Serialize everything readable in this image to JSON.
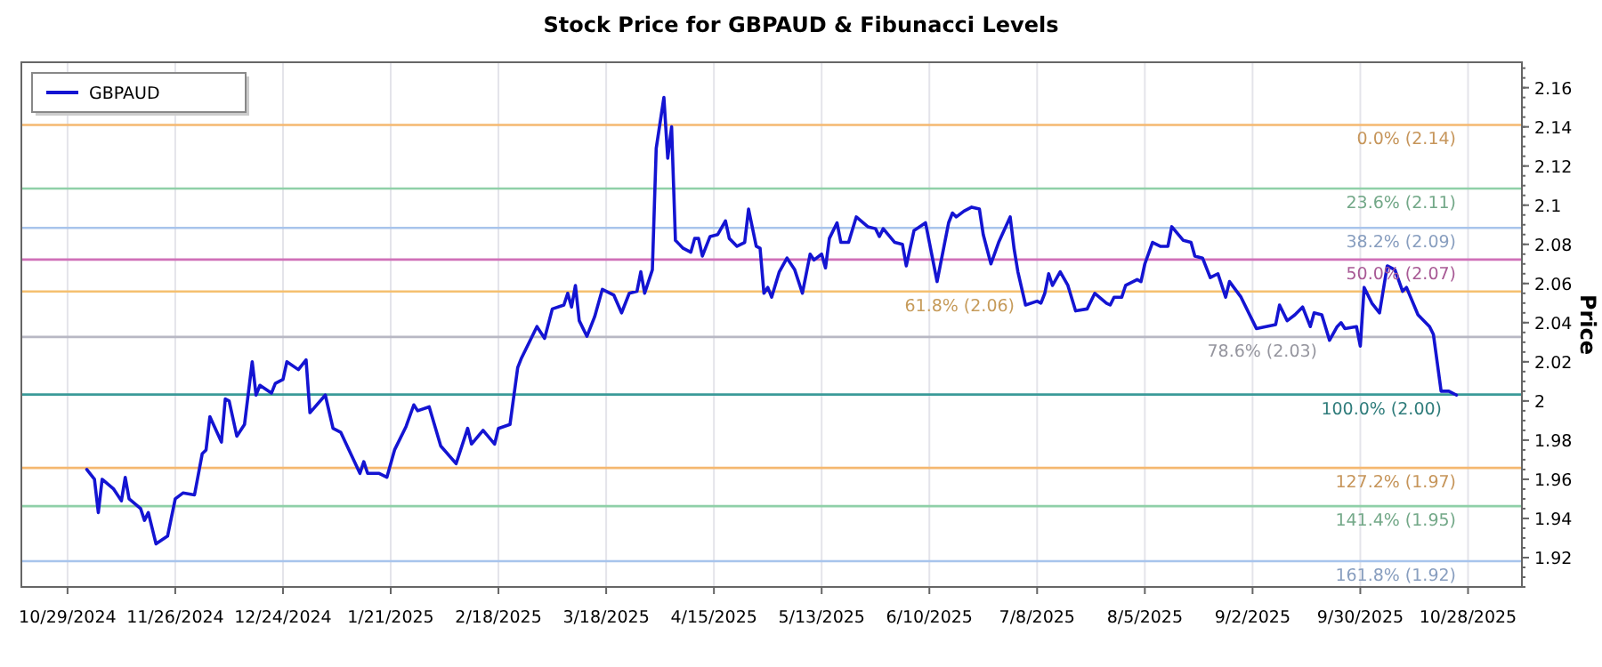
{
  "chart_data": {
    "type": "line",
    "title": "Stock Price for GBPAUD & Fibunacci Levels",
    "ylabel": "Price",
    "xlim": [
      "2024-10-17",
      "2025-11-11"
    ],
    "xticks": [
      {
        "value": "2024-10-29",
        "label": "10/29/2024"
      },
      {
        "value": "2024-11-26",
        "label": "11/26/2024"
      },
      {
        "value": "2024-12-24",
        "label": "12/24/2024"
      },
      {
        "value": "2025-01-21",
        "label": "1/21/2025"
      },
      {
        "value": "2025-02-18",
        "label": "2/18/2025"
      },
      {
        "value": "2025-03-18",
        "label": "3/18/2025"
      },
      {
        "value": "2025-04-15",
        "label": "4/15/2025"
      },
      {
        "value": "2025-05-13",
        "label": "5/13/2025"
      },
      {
        "value": "2025-06-10",
        "label": "6/10/2025"
      },
      {
        "value": "2025-07-08",
        "label": "7/8/2025"
      },
      {
        "value": "2025-08-05",
        "label": "8/5/2025"
      },
      {
        "value": "2025-09-02",
        "label": "9/2/2025"
      },
      {
        "value": "2025-09-30",
        "label": "9/30/2025"
      },
      {
        "value": "2025-10-28",
        "label": "10/28/2025"
      }
    ],
    "ylim": [
      1.905,
      2.173
    ],
    "yticks": [
      1.92,
      1.94,
      1.96,
      1.98,
      2,
      2.02,
      2.04,
      2.06,
      2.08,
      2.1,
      2.12,
      2.14,
      2.16
    ],
    "grid": "x",
    "legend": "top left",
    "line_style": "solid",
    "marker": "none",
    "ref_lines": [
      {
        "axis": "y",
        "value": 2.141,
        "label": "0.0% (2.14)",
        "color": "#f5b870"
      },
      {
        "axis": "y",
        "value": 2.1085,
        "label": "23.6% (2.11)",
        "color": "#8fd0a8"
      },
      {
        "axis": "y",
        "value": 2.0884,
        "label": "38.2% (2.09)",
        "color": "#a8c4ec"
      },
      {
        "axis": "y",
        "value": 2.0722,
        "label": "50.0% (2.07)",
        "color": "#d070b8"
      },
      {
        "axis": "y",
        "value": 2.0559,
        "label": "61.8% (2.06)",
        "color": "#f5c070"
      },
      {
        "axis": "y",
        "value": 2.0327,
        "label": "78.6% (2.03)",
        "color": "#b8b8c4"
      },
      {
        "axis": "y",
        "value": 2.0033,
        "label": "100.0% (2.00)",
        "color": "#3a9a98"
      },
      {
        "axis": "y",
        "value": 1.9658,
        "label": "127.2% (1.97)",
        "color": "#f5b870"
      },
      {
        "axis": "y",
        "value": 1.9463,
        "label": "141.4% (1.95)",
        "color": "#8fd0a8"
      },
      {
        "axis": "y",
        "value": 1.9182,
        "label": "161.8% (1.92)",
        "color": "#a8c4ec"
      }
    ],
    "series": [
      {
        "name": "GBPAUD",
        "color": "#1414d2",
        "x": [
          "2024-11-03",
          "2024-11-05",
          "2024-11-06",
          "2024-11-07",
          "2024-11-10",
          "2024-11-12",
          "2024-11-13",
          "2024-11-14",
          "2024-11-17",
          "2024-11-18",
          "2024-11-19",
          "2024-11-21",
          "2024-11-24",
          "2024-11-26",
          "2024-11-28",
          "2024-12-01",
          "2024-12-03",
          "2024-12-04",
          "2024-12-05",
          "2024-12-08",
          "2024-12-09",
          "2024-12-10",
          "2024-12-12",
          "2024-12-14",
          "2024-12-16",
          "2024-12-17",
          "2024-12-18",
          "2024-12-21",
          "2024-12-22",
          "2024-12-24",
          "2024-12-25",
          "2024-12-28",
          "2024-12-30",
          "2024-12-31",
          "2025-01-04",
          "2025-01-06",
          "2025-01-08",
          "2025-01-13",
          "2025-01-14",
          "2025-01-15",
          "2025-01-18",
          "2025-01-20",
          "2025-01-22",
          "2025-01-25",
          "2025-01-27",
          "2025-01-28",
          "2025-01-31",
          "2025-02-03",
          "2025-02-07",
          "2025-02-10",
          "2025-02-11",
          "2025-02-14",
          "2025-02-17",
          "2025-02-18",
          "2025-02-21",
          "2025-02-23",
          "2025-02-24",
          "2025-02-28",
          "2025-03-02",
          "2025-03-04",
          "2025-03-07",
          "2025-03-08",
          "2025-03-09",
          "2025-03-10",
          "2025-03-11",
          "2025-03-13",
          "2025-03-15",
          "2025-03-17",
          "2025-03-20",
          "2025-03-22",
          "2025-03-24",
          "2025-03-26",
          "2025-03-27",
          "2025-03-28",
          "2025-03-30",
          "2025-03-31",
          "2025-04-02",
          "2025-04-03",
          "2025-04-04",
          "2025-04-05",
          "2025-04-07",
          "2025-04-09",
          "2025-04-10",
          "2025-04-11",
          "2025-04-12",
          "2025-04-14",
          "2025-04-16",
          "2025-04-18",
          "2025-04-19",
          "2025-04-21",
          "2025-04-23",
          "2025-04-24",
          "2025-04-26",
          "2025-04-27",
          "2025-04-28",
          "2025-04-29",
          "2025-04-30",
          "2025-05-02",
          "2025-05-04",
          "2025-05-06",
          "2025-05-08",
          "2025-05-10",
          "2025-05-11",
          "2025-05-13",
          "2025-05-14",
          "2025-05-15",
          "2025-05-17",
          "2025-05-18",
          "2025-05-20",
          "2025-05-22",
          "2025-05-25",
          "2025-05-27",
          "2025-05-28",
          "2025-05-29",
          "2025-06-01",
          "2025-06-03",
          "2025-06-04",
          "2025-06-06",
          "2025-06-09",
          "2025-06-12",
          "2025-06-15",
          "2025-06-16",
          "2025-06-17",
          "2025-06-19",
          "2025-06-21",
          "2025-06-23",
          "2025-06-24",
          "2025-06-26",
          "2025-06-28",
          "2025-07-01",
          "2025-07-02",
          "2025-07-03",
          "2025-07-05",
          "2025-07-08",
          "2025-07-09",
          "2025-07-10",
          "2025-07-11",
          "2025-07-12",
          "2025-07-14",
          "2025-07-16",
          "2025-07-18",
          "2025-07-21",
          "2025-07-23",
          "2025-07-26",
          "2025-07-27",
          "2025-07-28",
          "2025-07-30",
          "2025-07-31",
          "2025-08-03",
          "2025-08-04",
          "2025-08-05",
          "2025-08-07",
          "2025-08-09",
          "2025-08-11",
          "2025-08-12",
          "2025-08-15",
          "2025-08-17",
          "2025-08-18",
          "2025-08-20",
          "2025-08-22",
          "2025-08-24",
          "2025-08-26",
          "2025-08-27",
          "2025-08-30",
          "2025-09-03",
          "2025-09-08",
          "2025-09-09",
          "2025-09-11",
          "2025-09-13",
          "2025-09-15",
          "2025-09-17",
          "2025-09-18",
          "2025-09-20",
          "2025-09-22",
          "2025-09-24",
          "2025-09-25",
          "2025-09-26",
          "2025-09-29",
          "2025-09-30",
          "2025-10-01",
          "2025-10-03",
          "2025-10-05",
          "2025-10-07",
          "2025-10-09",
          "2025-10-11",
          "2025-10-12",
          "2025-10-15",
          "2025-10-18",
          "2025-10-19",
          "2025-10-21",
          "2025-10-23",
          "2025-10-25"
        ],
        "values": [
          1.965,
          1.96,
          1.943,
          1.96,
          1.955,
          1.949,
          1.961,
          1.95,
          1.945,
          1.939,
          1.943,
          1.927,
          1.931,
          1.95,
          1.953,
          1.952,
          1.973,
          1.975,
          1.992,
          1.979,
          2.001,
          2.0,
          1.982,
          1.988,
          2.02,
          2.003,
          2.008,
          2.004,
          2.009,
          2.011,
          2.02,
          2.016,
          2.021,
          1.994,
          2.003,
          1.986,
          1.984,
          1.963,
          1.969,
          1.963,
          1.963,
          1.961,
          1.975,
          1.987,
          1.998,
          1.995,
          1.997,
          1.977,
          1.968,
          1.986,
          1.978,
          1.985,
          1.978,
          1.986,
          1.988,
          2.017,
          2.022,
          2.038,
          2.032,
          2.047,
          2.049,
          2.055,
          2.048,
          2.059,
          2.041,
          2.033,
          2.043,
          2.057,
          2.054,
          2.045,
          2.055,
          2.056,
          2.066,
          2.055,
          2.067,
          2.129,
          2.155,
          2.124,
          2.14,
          2.082,
          2.078,
          2.076,
          2.083,
          2.083,
          2.074,
          2.084,
          2.085,
          2.092,
          2.083,
          2.079,
          2.081,
          2.098,
          2.079,
          2.078,
          2.055,
          2.058,
          2.053,
          2.066,
          2.073,
          2.067,
          2.055,
          2.075,
          2.072,
          2.075,
          2.068,
          2.083,
          2.091,
          2.081,
          2.081,
          2.094,
          2.089,
          2.088,
          2.084,
          2.088,
          2.081,
          2.08,
          2.069,
          2.087,
          2.091,
          2.061,
          2.091,
          2.096,
          2.094,
          2.097,
          2.099,
          2.098,
          2.085,
          2.07,
          2.081,
          2.094,
          2.078,
          2.066,
          2.049,
          2.051,
          2.05,
          2.055,
          2.065,
          2.059,
          2.066,
          2.059,
          2.046,
          2.047,
          2.055,
          2.05,
          2.049,
          2.053,
          2.053,
          2.059,
          2.062,
          2.061,
          2.07,
          2.081,
          2.079,
          2.079,
          2.089,
          2.082,
          2.081,
          2.074,
          2.073,
          2.063,
          2.065,
          2.053,
          2.061,
          2.053,
          2.037,
          2.039,
          2.049,
          2.041,
          2.044,
          2.048,
          2.038,
          2.045,
          2.044,
          2.031,
          2.038,
          2.04,
          2.037,
          2.038,
          2.028,
          2.058,
          2.05,
          2.045,
          2.069,
          2.067,
          2.056,
          2.058,
          2.044,
          2.038,
          2.034,
          2.005,
          2.005,
          2.003
        ]
      }
    ]
  }
}
